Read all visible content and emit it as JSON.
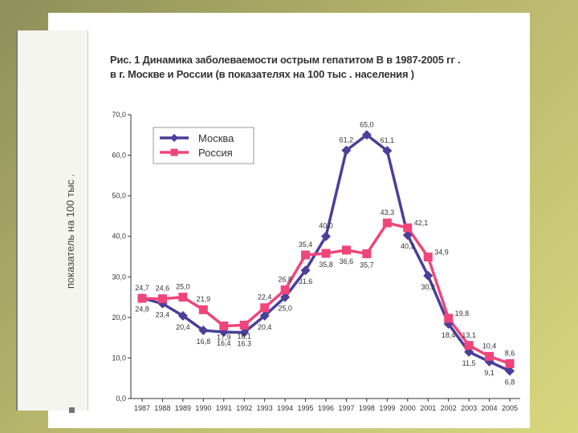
{
  "chart_data": {
    "type": "line",
    "title": "Рис. 1 Динамика заболеваемости острым гепатитом В в 1987-2005 гг .",
    "subtitle": "в г. Москве и России (в показателях на 100 тыс . населения )",
    "xlabel": "",
    "ylabel": "показатель на 100 тыс .",
    "ylim": [
      0,
      70
    ],
    "yticks": [
      "0,0",
      "10,0",
      "20,0",
      "30,0",
      "40,0",
      "50,0",
      "60,0",
      "70,0"
    ],
    "yticks_values": [
      0,
      10,
      20,
      30,
      40,
      50,
      60,
      70
    ],
    "x": [
      "1987",
      "1988",
      "1989",
      "1990",
      "1991",
      "1992",
      "1993",
      "1994",
      "1995",
      "1996",
      "1997",
      "1998",
      "1999",
      "2000",
      "2001",
      "2002",
      "2003",
      "2004",
      "2005"
    ],
    "legend_position": "top-left",
    "grid": false,
    "series": [
      {
        "name": "Москва",
        "color": "#4a3f99",
        "marker": "diamond",
        "values": [
          24.8,
          23.4,
          20.4,
          16.8,
          16.4,
          16.3,
          20.4,
          25.0,
          31.6,
          40.0,
          61.2,
          65.0,
          61.1,
          40.3,
          30.3,
          18.4,
          11.5,
          9.1,
          6.8
        ],
        "labels": [
          "24,8",
          "23,4",
          "20,4",
          "16,8",
          "16,4",
          "16.3",
          "20,4",
          "25,0",
          "31,6",
          "40,0",
          "61,2",
          "65,0",
          "61,1",
          "40,3",
          "30,3",
          "18,4",
          "11,5",
          "9,1",
          "6,8"
        ],
        "label_pos": [
          "below",
          "below",
          "below",
          "below",
          "below",
          "below",
          "below",
          "below",
          "below",
          "above",
          "above",
          "above",
          "above",
          "below",
          "below",
          "below",
          "below",
          "below",
          "below"
        ]
      },
      {
        "name": "Россия",
        "color": "#f0457a",
        "marker": "square",
        "values": [
          24.7,
          24.6,
          25.0,
          21.9,
          17.9,
          18.1,
          22.4,
          26.8,
          35.4,
          35.8,
          36.6,
          35.7,
          43.3,
          42.1,
          34.9,
          19.8,
          13.1,
          10.4,
          8.6
        ],
        "labels": [
          "24,7",
          "24,6",
          "25,0",
          "21,9",
          "17,9",
          "18,1",
          "22,4",
          "26,8",
          "35,4",
          "35,8",
          "36,6",
          "35,7",
          "43,3",
          "42,1",
          "34,9",
          "19,8",
          "13,1",
          "10,4",
          "8,6"
        ],
        "label_pos": [
          "above",
          "above",
          "above",
          "above",
          "below",
          "below",
          "above",
          "above",
          "above",
          "below",
          "below",
          "below",
          "above",
          "right",
          "right",
          "right",
          "above",
          "above",
          "above"
        ]
      }
    ]
  }
}
